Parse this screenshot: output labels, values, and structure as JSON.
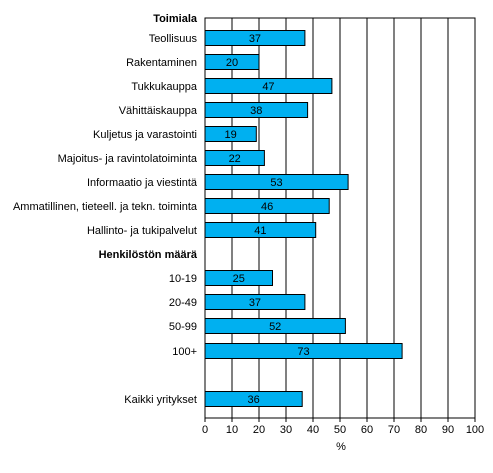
{
  "chart_data": {
    "type": "bar",
    "orientation": "horizontal",
    "xlabel": "%",
    "xlim": [
      0,
      100
    ],
    "xticks": [
      0,
      10,
      20,
      30,
      40,
      50,
      60,
      70,
      80,
      90,
      100
    ],
    "grid": "vertical",
    "bar_color": "#00b0f0",
    "groups": [
      {
        "title": "Toimiala",
        "items": [
          {
            "label": "Teollisuus",
            "value": 37
          },
          {
            "label": "Rakentaminen",
            "value": 20
          },
          {
            "label": "Tukkukauppa",
            "value": 47
          },
          {
            "label": "Vähittäiskauppa",
            "value": 38
          },
          {
            "label": "Kuljetus ja varastointi",
            "value": 19
          },
          {
            "label": "Majoitus- ja ravintolatoiminta",
            "value": 22
          },
          {
            "label": "Informaatio ja viestintä",
            "value": 53
          },
          {
            "label": "Ammatillinen, tieteell. ja tekn. toiminta",
            "value": 46
          },
          {
            "label": "Hallinto- ja tukipalvelut",
            "value": 41
          }
        ]
      },
      {
        "title": "Henkilöstön määrä",
        "items": [
          {
            "label": "10-19",
            "value": 25
          },
          {
            "label": "20-49",
            "value": 37
          },
          {
            "label": "50-99",
            "value": 52
          },
          {
            "label": "100+",
            "value": 73
          }
        ]
      },
      {
        "title": "",
        "items": [
          {
            "label": "Kaikki yritykset",
            "value": 36
          }
        ]
      }
    ]
  }
}
